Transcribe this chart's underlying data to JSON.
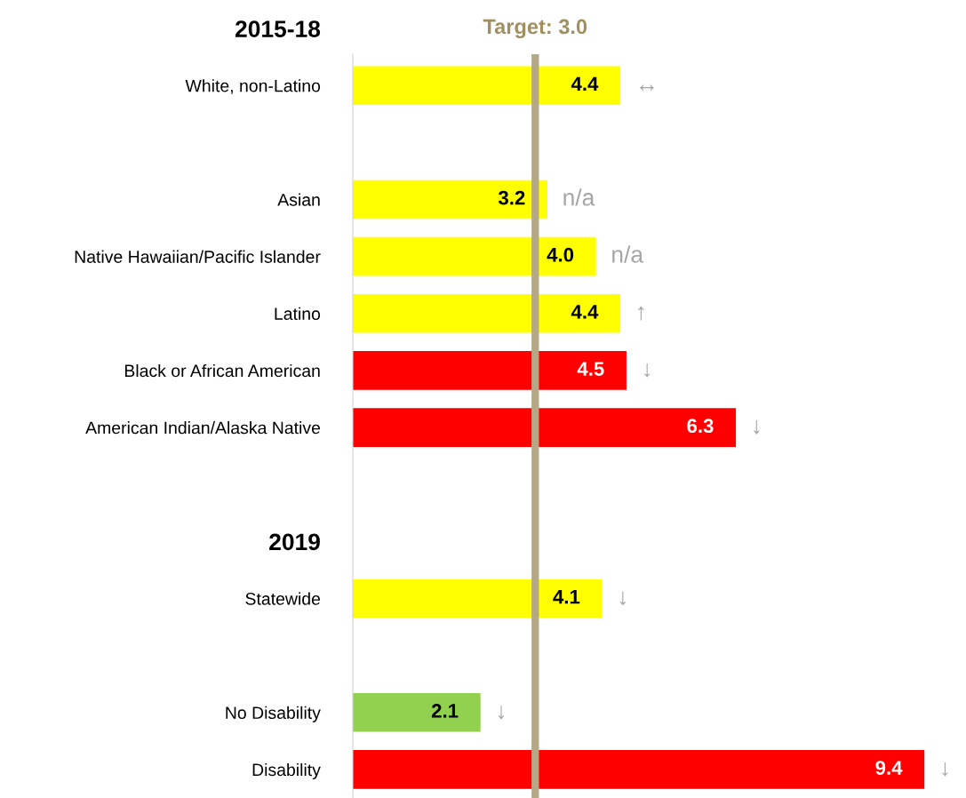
{
  "chart_data": {
    "type": "bar",
    "orientation": "horizontal",
    "categories": [
      "2015-18",
      "White, non-Latino",
      null,
      "Asian",
      "Native Hawaiian/Pacific Islander",
      "Latino",
      "Black or African American",
      "American Indian/Alaska Native",
      null,
      "2019",
      "Statewide",
      null,
      "No Disability",
      "Disability"
    ],
    "values": [
      null,
      4.4,
      null,
      3.2,
      4.0,
      4.4,
      4.5,
      6.3,
      null,
      null,
      4.1,
      null,
      2.1,
      9.4
    ],
    "colors": [
      null,
      "#ffff00",
      null,
      "#ffff00",
      "#ffff00",
      "#ffff00",
      "#ff0000",
      "#ff0000",
      null,
      null,
      "#ffff00",
      null,
      "#92d050",
      "#ff0000"
    ],
    "value_labels": [
      null,
      "4.4",
      null,
      "3.2",
      "4.0",
      "4.4",
      "4.5",
      "6.3",
      null,
      null,
      "4.1",
      null,
      "2.1",
      "9.4"
    ],
    "tick_labels": "y",
    "ref_lines": [
      {
        "axis": "x",
        "value": 3.0,
        "label": "Target: 3.0",
        "color": "#b5a886"
      }
    ],
    "annotations": [
      {
        "text": "↔",
        "x": 4.4,
        "y": "White, non-Latino"
      },
      {
        "text": "n/a",
        "x": 3.2,
        "y": "Asian"
      },
      {
        "text": "n/a",
        "x": 4.0,
        "y": "Native Hawaiian/Pacific Islander"
      },
      {
        "text": "↑",
        "x": 4.4,
        "y": "Latino"
      },
      {
        "text": "↓",
        "x": 4.5,
        "y": "Black or African American"
      },
      {
        "text": "↓",
        "x": 6.3,
        "y": "American Indian/Alaska Native"
      },
      {
        "text": "↓",
        "x": 4.1,
        "y": "Statewide"
      },
      {
        "text": "↓",
        "x": 2.1,
        "y": "No Disability"
      },
      {
        "text": "↓",
        "x": 9.4,
        "y": "Disability"
      }
    ]
  }
}
